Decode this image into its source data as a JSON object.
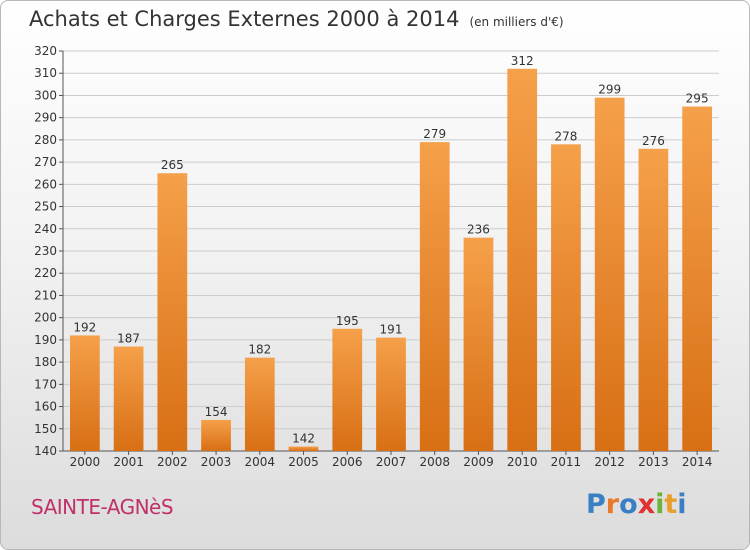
{
  "header": {
    "title": "Achats et Charges Externes 2000 à 2014",
    "unit": "(en milliers d'€)"
  },
  "footer": {
    "commune": "SAINTE-AGNèS",
    "logo_text": "Proxiti",
    "logo_colors": [
      "#3a7fc4",
      "#e8782a",
      "#3a7fc4",
      "#e03030",
      "#6ab43c",
      "#e8a02a",
      "#3a7fc4"
    ]
  },
  "colors": {
    "bar_top": "#f5a04a",
    "bar_bottom": "#d86f14",
    "grid": "#cccccc"
  },
  "chart_data": {
    "type": "bar",
    "title": "Achats et Charges Externes 2000 à 2014",
    "subtitle": "(en milliers d'€)",
    "categories": [
      "2000",
      "2001",
      "2002",
      "2003",
      "2004",
      "2005",
      "2006",
      "2007",
      "2008",
      "2009",
      "2010",
      "2011",
      "2012",
      "2013",
      "2014"
    ],
    "values": [
      192,
      187,
      265,
      154,
      182,
      142,
      195,
      191,
      279,
      236,
      312,
      278,
      299,
      276,
      295
    ],
    "ylim": [
      140,
      320
    ],
    "yticks": [
      140,
      150,
      160,
      170,
      180,
      190,
      200,
      210,
      220,
      230,
      240,
      250,
      260,
      270,
      280,
      290,
      300,
      310,
      320
    ],
    "grid": true,
    "xlabel": "",
    "ylabel": ""
  }
}
